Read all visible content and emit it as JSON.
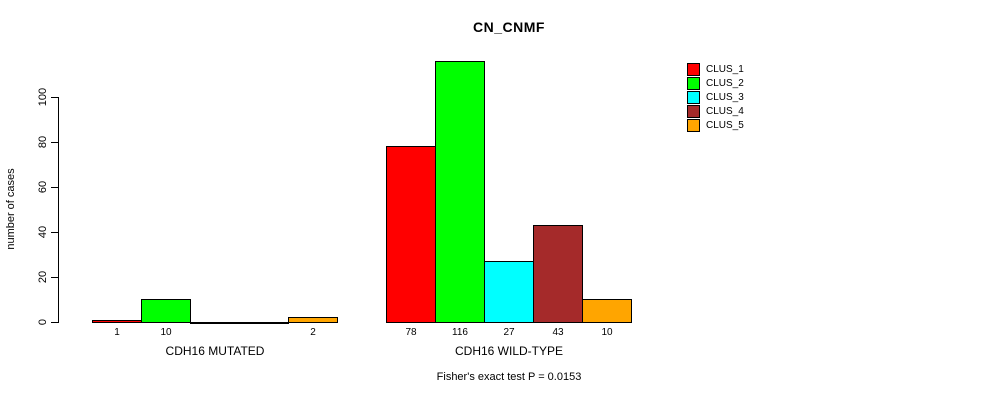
{
  "title": "CN_CNMF",
  "y_axis": {
    "label": "number of cases",
    "ticks": [
      0,
      20,
      40,
      60,
      80,
      100
    ]
  },
  "footer": "Fisher's exact test P = 0.0153",
  "legend": {
    "items": [
      {
        "label": "CLUS_1",
        "color": "#FF0000"
      },
      {
        "label": "CLUS_2",
        "color": "#00FF00"
      },
      {
        "label": "CLUS_3",
        "color": "#00FFFF"
      },
      {
        "label": "CLUS_4",
        "color": "#A52A2A"
      },
      {
        "label": "CLUS_5",
        "color": "#FFA500"
      }
    ]
  },
  "chart_data": {
    "type": "bar",
    "title": "CN_CNMF",
    "ylabel": "number of cases",
    "ylim": [
      0,
      116
    ],
    "y_ticks": [
      0,
      20,
      40,
      60,
      80,
      100
    ],
    "grid": false,
    "legend_position": "right-outside",
    "series_names": [
      "CLUS_1",
      "CLUS_2",
      "CLUS_3",
      "CLUS_4",
      "CLUS_5"
    ],
    "colors": [
      "#FF0000",
      "#00FF00",
      "#00FFFF",
      "#A52A2A",
      "#FFA500"
    ],
    "groups": [
      {
        "label": "CDH16 MUTATED",
        "values": [
          1,
          10,
          0,
          0,
          2
        ]
      },
      {
        "label": "CDH16 WILD-TYPE",
        "values": [
          78,
          116,
          27,
          43,
          10
        ]
      }
    ],
    "bar_value_labels": [
      [
        "1",
        "10",
        "",
        "",
        "2"
      ],
      [
        "78",
        "116",
        "27",
        "43",
        "10"
      ]
    ],
    "annotation": "Fisher's exact test P = 0.0153"
  }
}
